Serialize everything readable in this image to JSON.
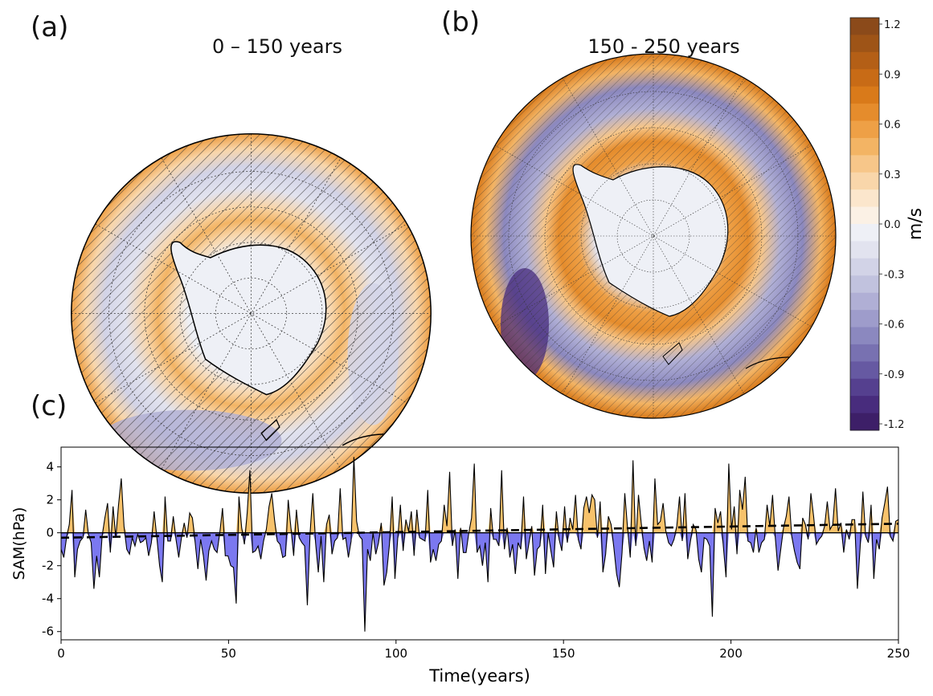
{
  "panels": {
    "a": {
      "letter": "(a)",
      "title": "0 – 150 years"
    },
    "b": {
      "letter": "(b)",
      "title": "150 - 250 years"
    },
    "c": {
      "letter": "(c)"
    }
  },
  "colorbar": {
    "unit": "m/s",
    "ticks": [
      "1.2",
      "0.9",
      "0.6",
      "0.3",
      "0.0",
      "-0.3",
      "-0.6",
      "-0.9",
      "-1.2"
    ],
    "colors_top_to_bottom": [
      "#8b4a1a",
      "#9e5417",
      "#b45f16",
      "#c86b16",
      "#d97a1a",
      "#e58c2c",
      "#eea046",
      "#f3b464",
      "#f7c689",
      "#f9d6aa",
      "#fbe6cc",
      "#fbf1e5",
      "#eef0f6",
      "#e2e3ef",
      "#d2d3e7",
      "#c1c2de",
      "#b0afd5",
      "#9e9ccb",
      "#8b88bf",
      "#7871b1",
      "#6659a2",
      "#55408f",
      "#482c7d",
      "#3d1f68"
    ],
    "contour_colors": {
      "orange": "#eea046",
      "light_orange": "#f7c689",
      "purple": "#9e9ccb",
      "light_purple": "#d2d3e7",
      "background": "#eef0f6"
    }
  },
  "chart_data": {
    "type": "area",
    "xlabel": "Time(years)",
    "ylabel": "SAM(hPa)",
    "xlim": [
      0,
      250
    ],
    "ylim": [
      -6.5,
      5.2
    ],
    "x_ticks": [
      0,
      50,
      100,
      150,
      200,
      250
    ],
    "y_ticks": [
      -6,
      -4,
      -2,
      0,
      2,
      4
    ],
    "positive_fill": "#f7c26b",
    "negative_fill": "#7b78f0",
    "series": [
      {
        "name": "",
        "style": "line",
        "x_start": 0,
        "x_step": 1,
        "values": [
          -1.0,
          -1.5,
          -0.3,
          0.5,
          2.6,
          -2.7,
          -1.0,
          -0.5,
          -0.3,
          1.4,
          -0.1,
          -0.6,
          -3.4,
          -1.4,
          -2.7,
          -0.2,
          0.9,
          1.8,
          -1.2,
          1.6,
          -0.3,
          1.7,
          3.3,
          0.4,
          -1.0,
          -1.3,
          -0.3,
          -0.8,
          -0.1,
          -0.6,
          -0.5,
          -0.3,
          -1.4,
          -0.6,
          1.3,
          -0.3,
          -2.0,
          -3.0,
          2.2,
          -0.5,
          -0.5,
          1.0,
          -0.4,
          -1.5,
          -0.3,
          0.6,
          -0.3,
          1.2,
          0.9,
          -0.6,
          -2.2,
          -0.4,
          -1.4,
          -2.9,
          -1.1,
          -0.5,
          -1.0,
          -1.2,
          0.0,
          1.5,
          -1.4,
          -1.4,
          -2.0,
          -2.1,
          -4.3,
          2.2,
          0.3,
          -0.7,
          1.2,
          3.8,
          -1.2,
          -1.1,
          -0.8,
          -1.6,
          -0.5,
          0.2,
          1.6,
          2.4,
          0.8,
          -0.5,
          -0.7,
          -1.5,
          -1.4,
          2.0,
          0.3,
          -1.4,
          1.4,
          -0.3,
          -0.6,
          -0.8,
          -4.4,
          0.0,
          2.4,
          -0.6,
          -2.4,
          -0.2,
          -3.0,
          0.5,
          1.1,
          -1.3,
          -0.5,
          -0.3,
          2.7,
          -0.4,
          -0.3,
          -1.5,
          -0.5,
          4.6,
          0.7,
          -0.2,
          -0.4,
          -6.0,
          -1.0,
          -1.7,
          0.0,
          -1.3,
          -0.6,
          0.6,
          -3.2,
          -2.4,
          -0.7,
          2.2,
          -2.8,
          -0.4,
          1.7,
          -1.1,
          0.8,
          0.1,
          1.3,
          -1.4,
          1.4,
          -0.3,
          -0.4,
          -0.5,
          2.6,
          -1.8,
          -1.0,
          -1.7,
          -0.7,
          -0.5,
          1.7,
          0.4,
          3.7,
          -0.8,
          0.2,
          -2.8,
          0.3,
          -1.2,
          -1.2,
          0.0,
          0.9,
          4.2,
          -1.2,
          -0.8,
          -2.0,
          -0.6,
          -3.0,
          1.5,
          -0.4,
          -0.4,
          -0.8,
          3.8,
          -1.0,
          0.3,
          -1.5,
          -0.7,
          -2.5,
          -0.6,
          -1.0,
          2.2,
          -1.6,
          -0.6,
          0.4,
          -2.6,
          -1.0,
          -0.8,
          1.7,
          -2.5,
          0.0,
          -1.1,
          -2.1,
          1.3,
          -0.4,
          -1.1,
          1.6,
          -0.6,
          0.9,
          0.2,
          2.3,
          -0.4,
          -1.0,
          1.5,
          2.2,
          1.2,
          2.3,
          2.0,
          -0.3,
          1.9,
          -2.4,
          -1.3,
          1.0,
          0.5,
          -0.9,
          -2.5,
          -3.3,
          -1.2,
          2.4,
          0.3,
          -1.5,
          4.4,
          -0.8,
          2.3,
          0.6,
          -0.9,
          -1.7,
          -0.5,
          -1.8,
          3.3,
          0.5,
          0.7,
          1.8,
          0.1,
          -0.6,
          -0.8,
          -0.4,
          0.4,
          2.2,
          -0.5,
          2.4,
          -1.6,
          -0.5,
          0.5,
          0.2,
          -1.6,
          -2.4,
          -0.3,
          -0.4,
          -0.8,
          -5.1,
          1.5,
          0.6,
          1.3,
          -0.8,
          -2.7,
          4.2,
          0.2,
          1.6,
          -1.3,
          2.6,
          1.4,
          3.4,
          -0.5,
          -0.6,
          -1.2,
          0.3,
          -1.2,
          -0.6,
          -0.4,
          1.7,
          0.4,
          2.3,
          -0.3,
          -2.3,
          -1.0,
          0.3,
          1.0,
          2.2,
          -0.2,
          -1.1,
          -1.8,
          -2.2,
          0.9,
          0.5,
          -0.4,
          2.4,
          1.0,
          -0.7,
          -0.4,
          -0.2,
          0.4,
          1.9,
          0.2,
          0.5,
          2.7,
          0.1,
          0.6,
          -1.2,
          0.2,
          -0.4,
          0.8,
          0.8,
          -3.4,
          -0.9,
          2.5,
          -0.2,
          -0.6,
          1.7,
          -2.8,
          -0.4,
          -1.0,
          0.9,
          1.8,
          2.8,
          -0.2,
          -0.5,
          0.7,
          0.8
        ]
      },
      {
        "name": "",
        "style": "dashed-trend",
        "x": [
          0,
          250
        ],
        "values": [
          -0.3,
          0.55
        ]
      }
    ]
  }
}
